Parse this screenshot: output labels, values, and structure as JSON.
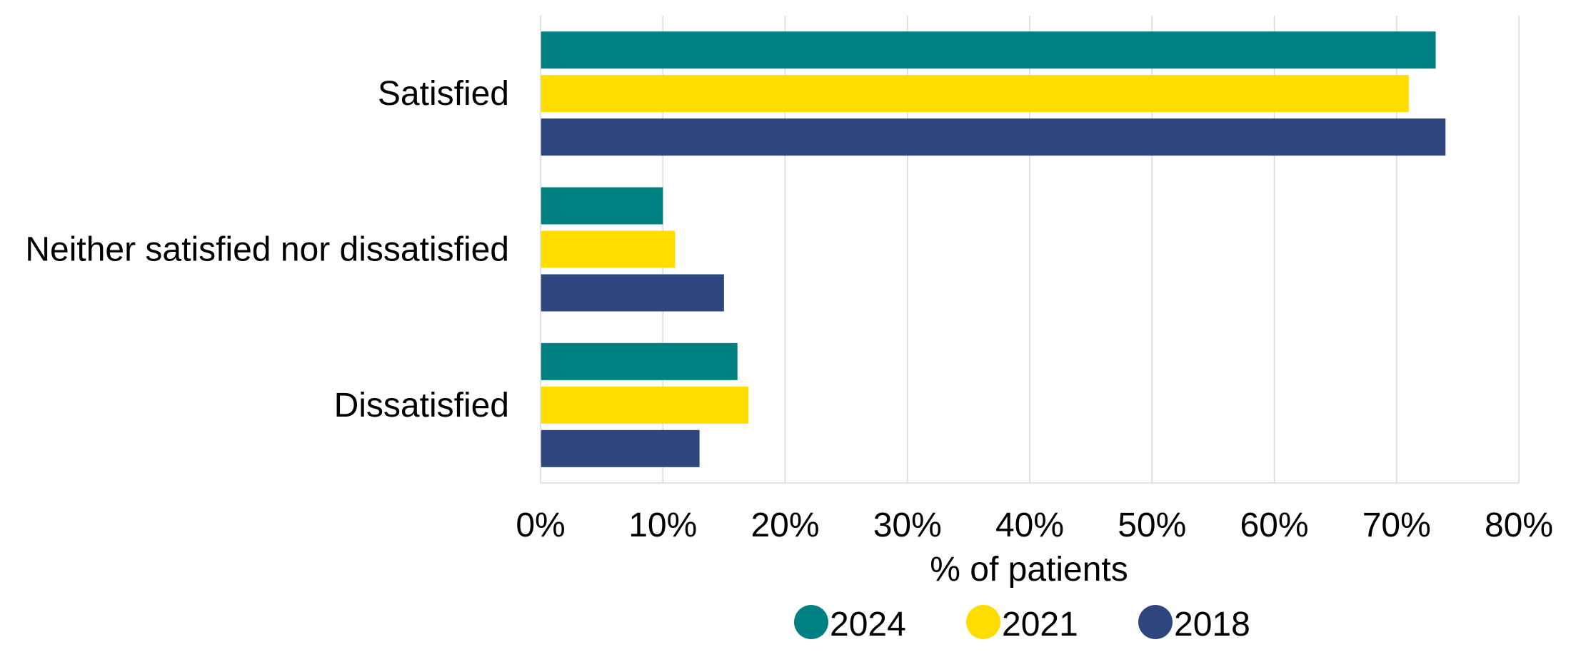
{
  "chart_data": {
    "type": "bar",
    "orientation": "horizontal",
    "title": "",
    "xlabel": "% of patients",
    "ylabel": "",
    "xlim": [
      0,
      80
    ],
    "x_ticks": [
      0,
      10,
      20,
      30,
      40,
      50,
      60,
      70,
      80
    ],
    "x_tick_labels": [
      "0%",
      "10%",
      "20%",
      "30%",
      "40%",
      "50%",
      "60%",
      "70%",
      "80%"
    ],
    "categories": [
      "Satisfied",
      "Neither satisfied nor dissatisfied",
      "Dissatisfied"
    ],
    "series": [
      {
        "name": "2024",
        "color": "#008080",
        "values": [
          73.2,
          10,
          16.1
        ]
      },
      {
        "name": "2021",
        "color": "#FFDD00",
        "values": [
          71,
          11,
          17
        ]
      },
      {
        "name": "2018",
        "color": "#2E467D",
        "values": [
          74,
          15,
          13
        ]
      }
    ],
    "grid": true,
    "legend_position": "bottom"
  }
}
